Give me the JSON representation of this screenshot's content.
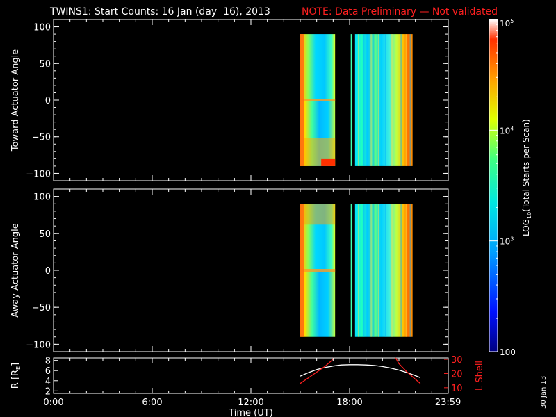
{
  "title": "TWINS1: Start Counts: 16 Jan (day  16), 2013",
  "note": "NOTE: Data Preliminary — Not validated",
  "date_stamp": "30 Jan 13",
  "colors": {
    "note": "#ff2020",
    "lshell": "#ff2020",
    "axes": "#ffffff",
    "background": "#000000"
  },
  "chart_data": [
    {
      "type": "heatmap",
      "ylabel": "Toward Actuator Angle",
      "ylim": [
        -110,
        110
      ],
      "yticks": [
        100,
        50,
        0,
        -50,
        -100
      ],
      "ytick_labels": [
        "100",
        "50",
        "0",
        "−50",
        "−100"
      ],
      "xlim": [
        0,
        24
      ],
      "data_bands": [
        [
          14.97,
          17.12
        ],
        [
          18.07,
          18.17
        ],
        [
          18.33,
          21.83
        ]
      ],
      "data_yrange": [
        -90,
        90
      ]
    },
    {
      "type": "heatmap",
      "ylabel": "Away Actuator Angle",
      "ylim": [
        -110,
        110
      ],
      "yticks": [
        100,
        50,
        0,
        -50,
        -100
      ],
      "ytick_labels": [
        "100",
        "50",
        "0",
        "−50",
        "−100"
      ],
      "xlim": [
        0,
        24
      ],
      "data_bands": [
        [
          14.97,
          17.12
        ],
        [
          18.07,
          18.17
        ],
        [
          18.33,
          21.83
        ]
      ],
      "data_yrange": [
        -90,
        90
      ]
    },
    {
      "type": "line",
      "ylabel": "R [R",
      "ylabel_sub": "E",
      "ylabel_close": "]",
      "ylim": [
        1.5,
        8.5
      ],
      "yticks": [
        8,
        6,
        4,
        2
      ],
      "ytick_labels": [
        "8",
        "6",
        "4",
        "2"
      ],
      "y2label": "L Shell",
      "y2lim": [
        6,
        31
      ],
      "y2ticks": [
        30,
        20,
        10
      ],
      "y2tick_labels": [
        "30",
        "20",
        "10"
      ],
      "xlabel": "Time (UT)",
      "xlim": [
        0,
        24
      ],
      "xticks": [
        0,
        6,
        12,
        18,
        23.983
      ],
      "xtick_labels": [
        "0:00",
        "6:00",
        "12:00",
        "18:00",
        "23:59"
      ],
      "series": [
        {
          "color": "#ffffff",
          "x": [
            15.0,
            15.5,
            16.0,
            16.5,
            17.0,
            17.5,
            18.0,
            18.5,
            19.0,
            19.5,
            20.0,
            20.5,
            21.0,
            21.5,
            22.0,
            22.3
          ],
          "y": [
            4.9,
            5.6,
            6.2,
            6.6,
            6.9,
            7.1,
            7.15,
            7.15,
            7.1,
            7.0,
            6.8,
            6.5,
            6.1,
            5.6,
            5.0,
            4.6
          ]
        },
        {
          "color": "#ff2020",
          "axis": "y2",
          "x": [
            15.0,
            15.5,
            16.0,
            16.5,
            16.9,
            17.05
          ],
          "y": [
            13,
            17,
            21,
            25,
            29,
            31
          ]
        },
        {
          "color": "#ff2020",
          "axis": "y2",
          "x": [
            20.8,
            21.0,
            21.5,
            22.0,
            22.3
          ],
          "y": [
            31,
            27,
            21,
            16,
            13
          ]
        }
      ]
    }
  ],
  "colorbar": {
    "label_prefix": "LOG",
    "label_sub": "10",
    "label_suffix": "(Total Starts per Scan)",
    "range": [
      100,
      100000
    ],
    "scale": "log",
    "ticks": [
      {
        "value": 100000,
        "base": "10",
        "exp": "5"
      },
      {
        "value": 10000,
        "base": "10",
        "exp": "4"
      },
      {
        "value": 1000,
        "base": "10",
        "exp": "3"
      },
      {
        "value": 100,
        "base": "100",
        "exp": ""
      }
    ]
  }
}
